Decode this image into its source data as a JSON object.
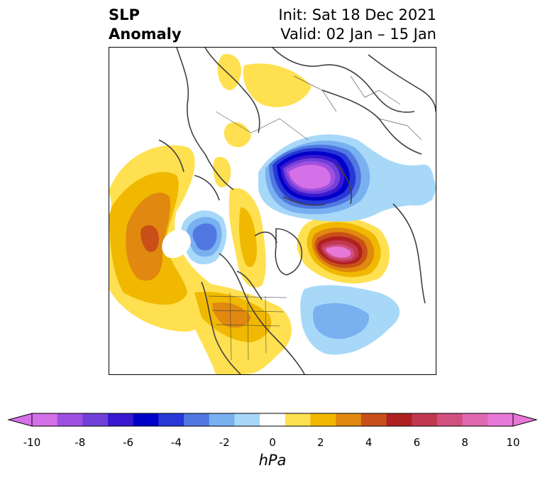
{
  "title": {
    "variable_line1": "SLP",
    "variable_line2": "Anomaly",
    "init": "Init: Sat 18 Dec 2021",
    "valid": "Valid: 02 Jan – 15 Jan"
  },
  "colorbar": {
    "unit": "hPa",
    "ticks": [
      "-10",
      "-8",
      "-6",
      "-4",
      "-2",
      "0",
      "2",
      "4",
      "6",
      "8",
      "10"
    ],
    "levels": [
      -10,
      -9,
      -8,
      -7,
      -6,
      -5,
      -4,
      -3,
      -2,
      -1,
      1,
      2,
      3,
      4,
      5,
      6,
      7,
      8,
      9,
      10
    ],
    "colors": [
      "#d470e8",
      "#a050e0",
      "#7040d8",
      "#3818d0",
      "#0000c8",
      "#2838d8",
      "#5078e0",
      "#78b0f0",
      "#a8d8f8",
      "#ffffff",
      "#ffe050",
      "#f0b800",
      "#e08810",
      "#c85018",
      "#b02020",
      "#c03850",
      "#d05080",
      "#e068b0",
      "#e878d8"
    ],
    "extend": "both"
  },
  "map": {
    "projection": "north-polar-stereographic",
    "region": "Northern Hemisphere (North America, Atlantic, Europe, Asia, North Pacific)",
    "colors": {
      "coast": "#404040",
      "neg_light": "#a8d8f8",
      "neg_mid": "#78b0f0",
      "neg_dark": "#2838d8",
      "neg_deep": "#0000c8",
      "neg_core": "#d470e8",
      "pos_light": "#ffe050",
      "pos_mid": "#f0b800",
      "pos_dark": "#e08810",
      "pos_deep": "#c85018",
      "pos_red": "#b02020",
      "pos_core": "#e878d8"
    }
  }
}
